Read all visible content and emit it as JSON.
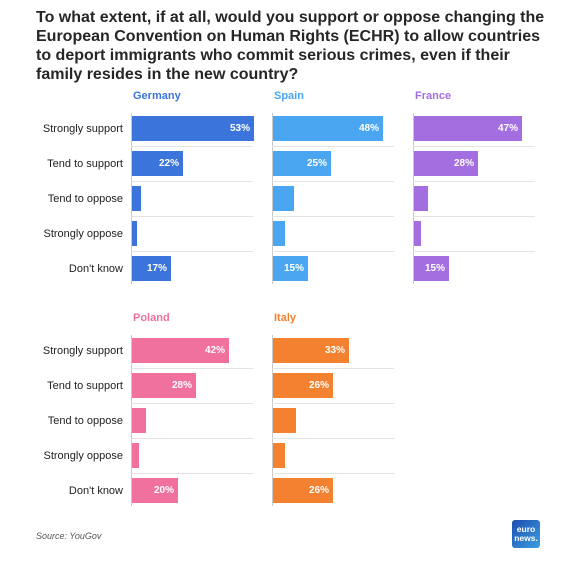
{
  "chart_data": {
    "type": "bar",
    "title": "To what extent, if at all, would you support or oppose changing the European Convention on Human Rights (ECHR) to allow countries to deport immigrants who commit serious crimes, even if their family resides in the new country?",
    "categories": [
      "Strongly support",
      "Tend to support",
      "Tend to oppose",
      "Strongly oppose",
      "Don't know"
    ],
    "xlim": [
      0,
      53
    ],
    "series": [
      {
        "name": "Germany",
        "color": "#3b74db",
        "values": [
          53,
          22,
          4,
          2,
          17
        ],
        "labels": [
          "53%",
          "22%",
          "",
          "",
          "17%"
        ]
      },
      {
        "name": "Spain",
        "color": "#4aa6f0",
        "values": [
          48,
          25,
          9,
          5,
          15
        ],
        "labels": [
          "48%",
          "25%",
          "",
          "",
          "15%"
        ]
      },
      {
        "name": "France",
        "color": "#a36ee0",
        "values": [
          47,
          28,
          6,
          3,
          15
        ],
        "labels": [
          "47%",
          "28%",
          "",
          "",
          "15%"
        ]
      },
      {
        "name": "Poland",
        "color": "#f0709e",
        "values": [
          42,
          28,
          6,
          3,
          20
        ],
        "labels": [
          "42%",
          "28%",
          "",
          "",
          "20%"
        ]
      },
      {
        "name": "Italy",
        "color": "#f4812f",
        "values": [
          33,
          26,
          10,
          5,
          26
        ],
        "labels": [
          "33%",
          "26%",
          "",
          "",
          "26%"
        ]
      }
    ]
  },
  "source": "Source: YouGov",
  "logo": {
    "line1": "euro",
    "line2": "news."
  }
}
